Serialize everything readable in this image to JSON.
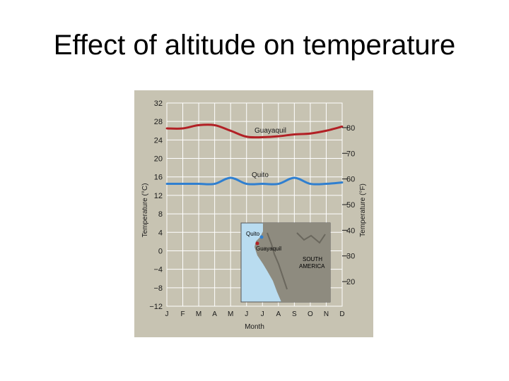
{
  "slide": {
    "title": "Effect of altitude on temperature"
  },
  "colors": {
    "panel": "#c7c3b2",
    "grid": "#ffffff",
    "guayaquil": "#b22025",
    "quito": "#2f7fd0",
    "ocean": "#b9dcf0",
    "land": "#8e8b7f"
  },
  "chart_data": {
    "type": "line",
    "x": [
      "J",
      "F",
      "M",
      "A",
      "M",
      "J",
      "J",
      "A",
      "S",
      "O",
      "N",
      "D"
    ],
    "xlabel": "Month",
    "ylabel": "Temperature (°C)",
    "ylabel_right": "Temperature (°F)",
    "ylim": [
      -12,
      32
    ],
    "yticks": [
      "32",
      "28",
      "24",
      "20",
      "16",
      "12",
      "8",
      "4",
      "0",
      "−4",
      "−8",
      "−12"
    ],
    "yticks_values": [
      32,
      28,
      24,
      20,
      16,
      12,
      8,
      4,
      0,
      -4,
      -8,
      -12
    ],
    "yticks_right": [
      "80",
      "70",
      "60",
      "50",
      "40",
      "30",
      "20"
    ],
    "yticks_right_values": [
      80,
      70,
      60,
      50,
      40,
      30,
      20
    ],
    "grid": true,
    "series": [
      {
        "name": "Guayaquil",
        "values": [
          26.5,
          26.5,
          27.2,
          27.2,
          26.0,
          24.7,
          24.6,
          24.8,
          25.2,
          25.4,
          26.0,
          26.9
        ]
      },
      {
        "name": "Quito",
        "values": [
          14.5,
          14.5,
          14.5,
          14.5,
          15.8,
          14.5,
          14.5,
          14.5,
          15.8,
          14.5,
          14.5,
          14.8
        ]
      }
    ],
    "inset_map": {
      "labels": [
        "Quito",
        "Guayaquil",
        "SOUTH",
        "AMERICA"
      ]
    }
  }
}
